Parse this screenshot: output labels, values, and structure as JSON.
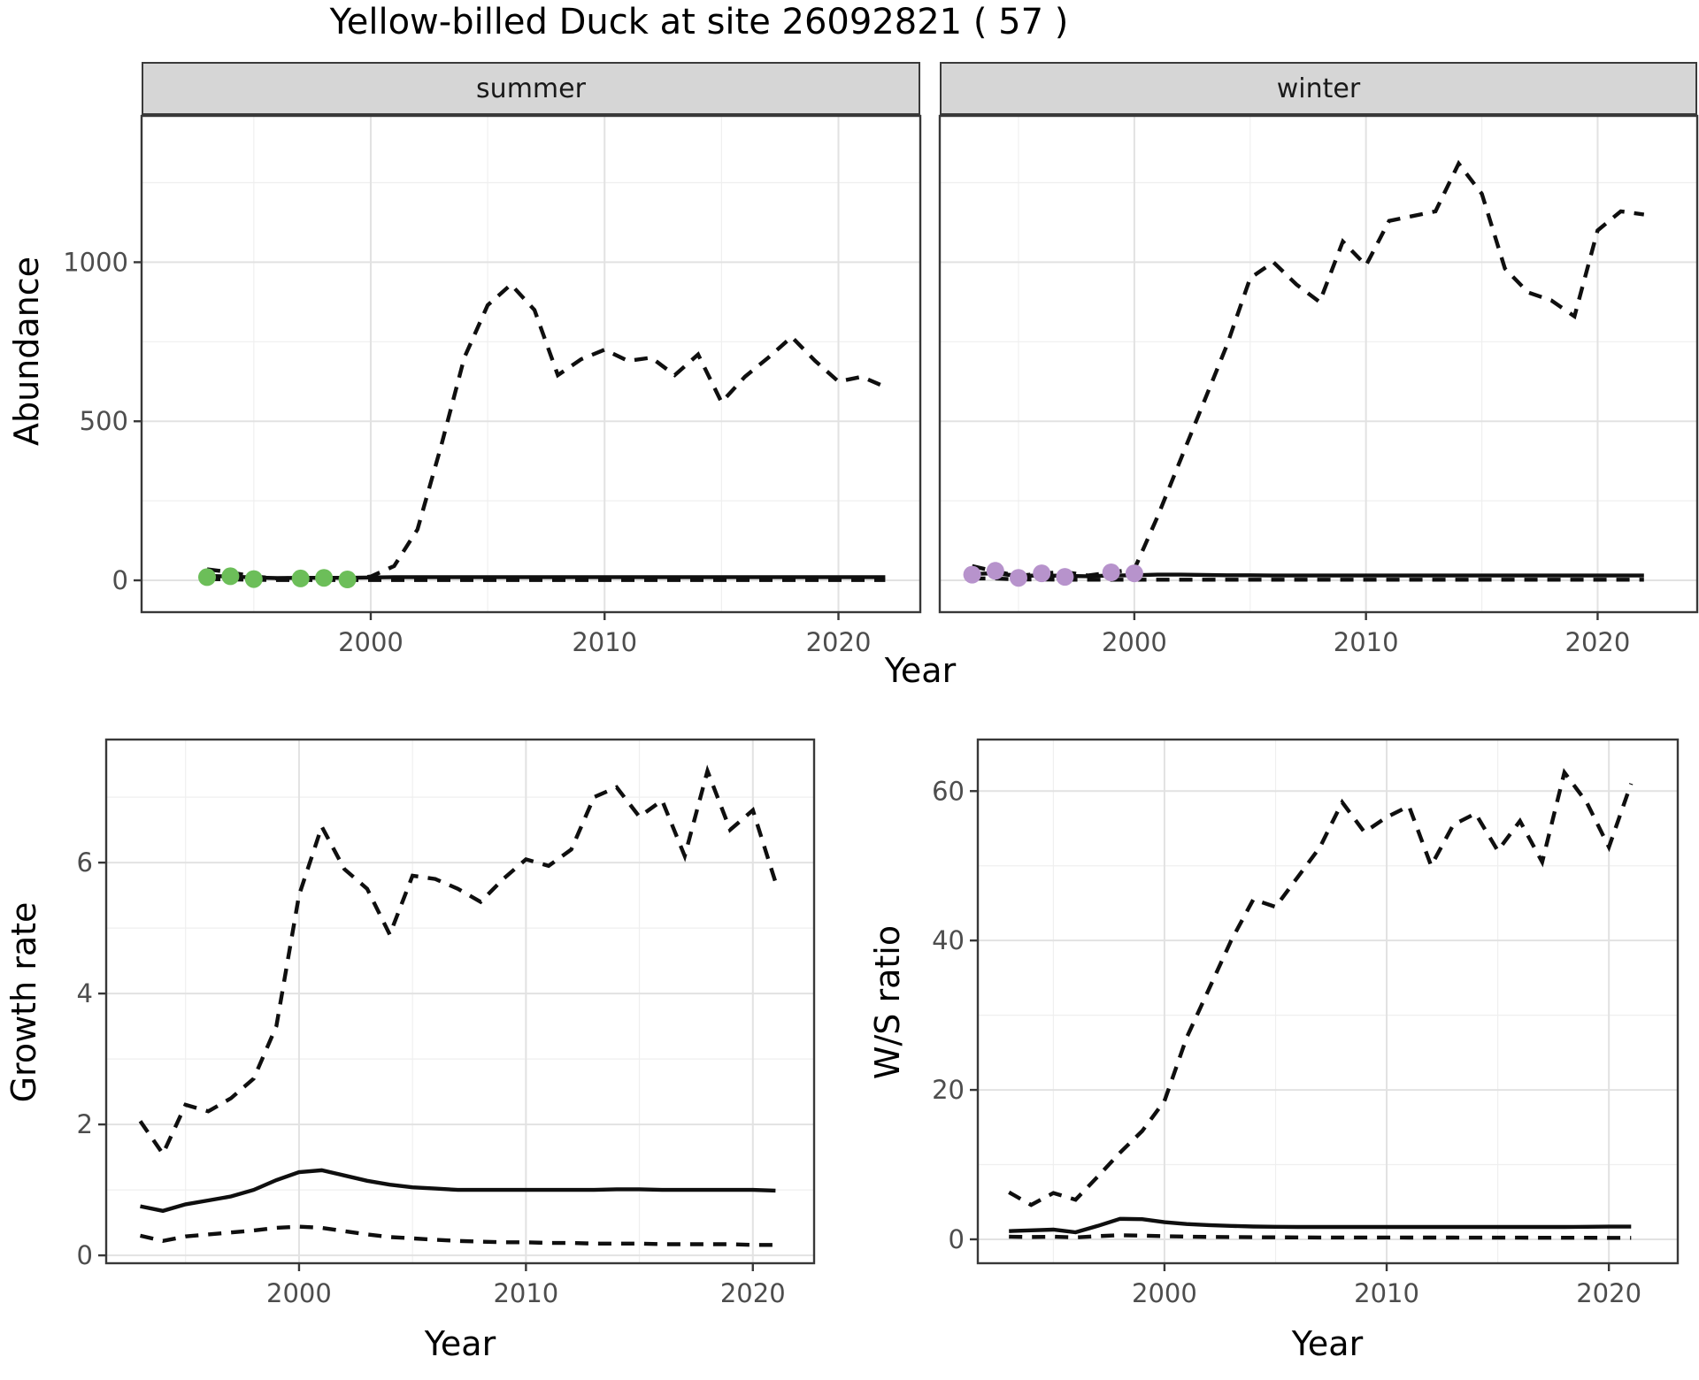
{
  "title": "Yellow-billed Duck at site 26092821 ( 57 )",
  "colors": {
    "line": "#0f0f0f",
    "grid_major": "#e2e2e2",
    "grid_minor": "#efefef",
    "panel_border": "#383838",
    "tick_label": "#4d4d4d",
    "strip_bg": "#d6d6d6",
    "summer_dot": "#6cbe59",
    "winter_dot": "#b793cc"
  },
  "chart_data": [
    {
      "id": "summer-abundance",
      "type": "line",
      "facet_label": "summer",
      "xlabel": "Year",
      "ylabel": "Abundance",
      "xlim": [
        1990.2,
        2023.5
      ],
      "ylim": [
        -100,
        1460
      ],
      "xticks": [
        2000,
        2010,
        2020
      ],
      "xminor": [
        1995,
        2005,
        2015
      ],
      "yticks": [
        0,
        500,
        1000
      ],
      "yminor": [
        250,
        750,
        1250
      ],
      "years": [
        1993,
        1994,
        1995,
        1996,
        1997,
        1998,
        1999,
        2000,
        2001,
        2002,
        2003,
        2004,
        2005,
        2006,
        2007,
        2008,
        2009,
        2010,
        2011,
        2012,
        2013,
        2014,
        2015,
        2016,
        2017,
        2018,
        2019,
        2020,
        2021,
        2022
      ],
      "series": [
        {
          "name": "upper-ci",
          "style": "dashed",
          "values": [
            35,
            25,
            12,
            6,
            8,
            5,
            4,
            12,
            45,
            160,
            420,
            700,
            865,
            930,
            850,
            645,
            695,
            725,
            690,
            700,
            645,
            710,
            560,
            640,
            700,
            765,
            690,
            625,
            640,
            608
          ]
        },
        {
          "name": "median",
          "style": "solid",
          "values": [
            14,
            12,
            9,
            7,
            8,
            8,
            8,
            9,
            10,
            10,
            10,
            10,
            10,
            10,
            10,
            10,
            10,
            10,
            10,
            10,
            10,
            10,
            10,
            10,
            10,
            10,
            10,
            10,
            10,
            10
          ]
        },
        {
          "name": "lower-ci",
          "style": "dashed",
          "values": [
            4,
            3,
            2,
            1,
            1,
            1,
            1,
            1,
            1,
            1,
            1,
            1,
            1,
            1,
            1,
            1,
            1,
            1,
            1,
            1,
            1,
            1,
            1,
            1,
            1,
            1,
            1,
            1,
            1,
            1
          ]
        }
      ],
      "points": {
        "name": "observed-counts",
        "color": "#6cbe59",
        "years": [
          1993,
          1994,
          1995,
          1997,
          1998,
          1999
        ],
        "values": [
          10,
          13,
          4,
          6,
          8,
          3
        ]
      }
    },
    {
      "id": "winter-abundance",
      "type": "line",
      "facet_label": "winter",
      "xlabel": "Year",
      "ylabel": "Abundance",
      "xlim": [
        1991.6,
        2024.3
      ],
      "ylim": [
        -100,
        1460
      ],
      "xticks": [
        2000,
        2010,
        2020
      ],
      "xminor": [
        1995,
        2005,
        2015
      ],
      "yticks": [
        0,
        500,
        1000
      ],
      "yminor": [
        250,
        750,
        1250
      ],
      "years": [
        1993,
        1994,
        1995,
        1996,
        1997,
        1998,
        1999,
        2000,
        2001,
        2002,
        2003,
        2004,
        2005,
        2006,
        2007,
        2008,
        2009,
        2010,
        2011,
        2012,
        2013,
        2014,
        2015,
        2016,
        2017,
        2018,
        2019,
        2020,
        2021,
        2022
      ],
      "series": [
        {
          "name": "upper-ci",
          "style": "dashed",
          "values": [
            45,
            28,
            14,
            22,
            26,
            15,
            25,
            35,
            200,
            380,
            560,
            740,
            950,
            1000,
            930,
            875,
            1065,
            990,
            1130,
            1145,
            1160,
            1310,
            1215,
            980,
            905,
            880,
            830,
            1100,
            1160,
            1150
          ]
        },
        {
          "name": "median",
          "style": "solid",
          "values": [
            20,
            22,
            14,
            15,
            14,
            13,
            15,
            16,
            18,
            18,
            17,
            16,
            16,
            15,
            15,
            15,
            15,
            15,
            15,
            15,
            15,
            15,
            15,
            15,
            15,
            15,
            15,
            15,
            15,
            15
          ]
        },
        {
          "name": "lower-ci",
          "style": "dashed",
          "values": [
            6,
            6,
            3,
            3,
            2,
            2,
            2,
            2,
            2,
            2,
            2,
            2,
            2,
            2,
            2,
            2,
            2,
            2,
            2,
            2,
            2,
            2,
            2,
            2,
            2,
            2,
            2,
            2,
            2,
            2
          ]
        }
      ],
      "points": {
        "name": "observed-counts",
        "color": "#b793cc",
        "years": [
          1993,
          1994,
          1995,
          1996,
          1997,
          1999,
          2000
        ],
        "values": [
          18,
          30,
          8,
          22,
          11,
          25,
          22
        ]
      }
    },
    {
      "id": "growth-rate",
      "type": "line",
      "facet_label": "",
      "xlabel": "Year",
      "ylabel": "Growth rate",
      "xlim": [
        1991.5,
        2022.7
      ],
      "ylim": [
        -0.12,
        7.88
      ],
      "xticks": [
        2000,
        2010,
        2020
      ],
      "xminor": [
        1995,
        2005,
        2015
      ],
      "yticks": [
        0,
        2,
        4,
        6
      ],
      "yminor": [
        1,
        3,
        5,
        7
      ],
      "years": [
        1993,
        1994,
        1995,
        1996,
        1997,
        1998,
        1999,
        2000,
        2001,
        2002,
        2003,
        2004,
        2005,
        2006,
        2007,
        2008,
        2009,
        2010,
        2011,
        2012,
        2013,
        2014,
        2015,
        2016,
        2017,
        2018,
        2019,
        2020,
        2021
      ],
      "series": [
        {
          "name": "upper-ci",
          "style": "dashed",
          "values": [
            2.05,
            1.55,
            2.3,
            2.2,
            2.4,
            2.7,
            3.5,
            5.5,
            6.55,
            5.9,
            5.6,
            4.9,
            5.8,
            5.75,
            5.6,
            5.4,
            5.75,
            6.05,
            5.95,
            6.2,
            7.0,
            7.15,
            6.7,
            6.95,
            6.1,
            7.4,
            6.5,
            6.8,
            5.7
          ]
        },
        {
          "name": "median",
          "style": "solid",
          "values": [
            0.75,
            0.68,
            0.78,
            0.84,
            0.9,
            1.0,
            1.15,
            1.27,
            1.3,
            1.22,
            1.14,
            1.08,
            1.04,
            1.02,
            1.0,
            1.0,
            1.0,
            1.0,
            1.0,
            1.0,
            1.0,
            1.01,
            1.01,
            1.0,
            1.0,
            1.0,
            1.0,
            1.0,
            0.99
          ]
        },
        {
          "name": "lower-ci",
          "style": "dashed",
          "values": [
            0.3,
            0.22,
            0.29,
            0.32,
            0.35,
            0.38,
            0.42,
            0.44,
            0.42,
            0.37,
            0.32,
            0.28,
            0.26,
            0.24,
            0.22,
            0.21,
            0.2,
            0.2,
            0.19,
            0.19,
            0.18,
            0.18,
            0.18,
            0.17,
            0.17,
            0.17,
            0.17,
            0.16,
            0.16
          ]
        }
      ]
    },
    {
      "id": "ws-ratio",
      "type": "line",
      "facet_label": "",
      "xlabel": "Year",
      "ylabel": "W/S ratio",
      "xlim": [
        1991.6,
        2023.1
      ],
      "ylim": [
        -3.2,
        66.9
      ],
      "xticks": [
        2000,
        2010,
        2020
      ],
      "xminor": [
        1995,
        2005,
        2015
      ],
      "yticks": [
        0,
        20,
        40,
        60
      ],
      "yminor": [
        10,
        30,
        50
      ],
      "years": [
        1993,
        1994,
        1995,
        1996,
        1997,
        1998,
        1999,
        2000,
        2001,
        2002,
        2003,
        2004,
        2005,
        2006,
        2007,
        2008,
        2009,
        2010,
        2011,
        2012,
        2013,
        2014,
        2015,
        2016,
        2017,
        2018,
        2019,
        2020,
        2021
      ],
      "series": [
        {
          "name": "upper-ci",
          "style": "dashed",
          "values": [
            6.3,
            4.6,
            6.2,
            5.3,
            8.4,
            11.6,
            14.5,
            18.5,
            27,
            33.5,
            40,
            45.5,
            44.5,
            48.5,
            52.5,
            58.5,
            54.5,
            56.5,
            58,
            50,
            55.5,
            57,
            52,
            56,
            50.5,
            62.5,
            58.5,
            52.5,
            61
          ]
        },
        {
          "name": "median",
          "style": "solid",
          "values": [
            1.1,
            1.2,
            1.3,
            0.95,
            1.8,
            2.75,
            2.7,
            2.3,
            2.05,
            1.9,
            1.8,
            1.72,
            1.68,
            1.65,
            1.65,
            1.65,
            1.65,
            1.65,
            1.65,
            1.65,
            1.65,
            1.65,
            1.65,
            1.65,
            1.65,
            1.65,
            1.68,
            1.7,
            1.7
          ]
        },
        {
          "name": "lower-ci",
          "style": "dashed",
          "values": [
            0.35,
            0.3,
            0.35,
            0.25,
            0.42,
            0.55,
            0.5,
            0.42,
            0.36,
            0.32,
            0.3,
            0.28,
            0.27,
            0.26,
            0.25,
            0.25,
            0.24,
            0.24,
            0.23,
            0.23,
            0.23,
            0.22,
            0.22,
            0.22,
            0.21,
            0.21,
            0.21,
            0.2,
            0.2
          ]
        }
      ]
    }
  ]
}
